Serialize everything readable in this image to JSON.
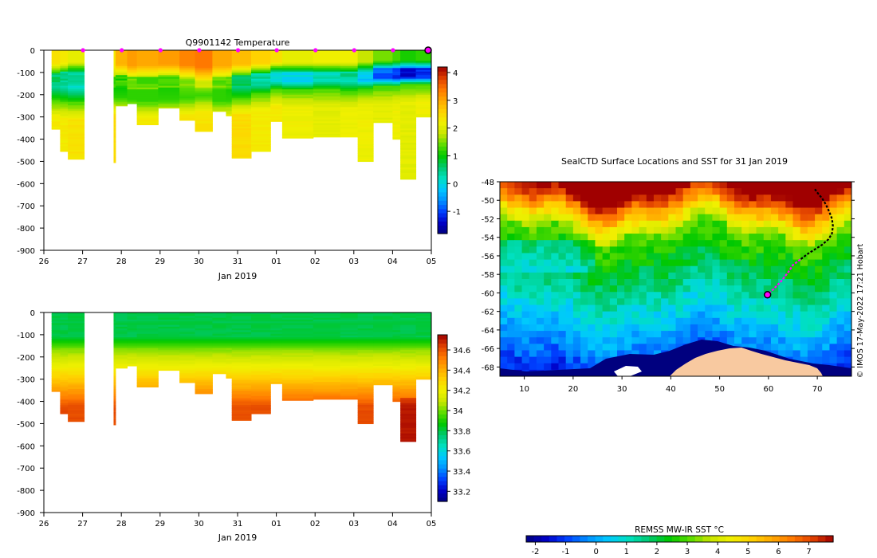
{
  "colors": {
    "jet": [
      "#00007f",
      "#0000c8",
      "#0040ff",
      "#0090ff",
      "#00c8ff",
      "#00e0c0",
      "#00c870",
      "#00c800",
      "#5adc00",
      "#c8e600",
      "#f0f000",
      "#ffd200",
      "#ffa800",
      "#ff7800",
      "#e04000",
      "#a00000"
    ],
    "land": "#f8c9a0",
    "track": "#000000",
    "marker": "#ff00ff"
  },
  "chart_data": [
    {
      "type": "heatmap",
      "name": "temperature-section",
      "title": "Q9901142  Temperature",
      "xlabel": "Jan 2019",
      "ylabel": "",
      "x_ticks": [
        "26",
        "27",
        "28",
        "29",
        "30",
        "31",
        "01",
        "02",
        "03",
        "04",
        "05"
      ],
      "y_ticks": [
        "0",
        "-100",
        "-200",
        "-300",
        "-400",
        "-500",
        "-600",
        "-700",
        "-800",
        "-900"
      ],
      "ylim": [
        -900,
        0
      ],
      "xlim": [
        26.0,
        36.0
      ],
      "colorbar_ticks": [
        "-1",
        "0",
        "1",
        "2",
        "3",
        "4"
      ],
      "clim": [
        -1.8,
        4.2
      ],
      "profile_dates": [
        27,
        28,
        29,
        30,
        31,
        32,
        33,
        34,
        35
      ],
      "profiles": [
        {
          "x": 26.2,
          "w": 0.22,
          "depth": 355,
          "surf": 2.4,
          "min": 0.4,
          "mintop": 100,
          "minbot": 220,
          "deep": 2.2
        },
        {
          "x": 26.42,
          "w": 0.2,
          "depth": 455,
          "surf": 2.3,
          "min": 0.3,
          "mintop": 95,
          "minbot": 225,
          "deep": 2.2
        },
        {
          "x": 26.62,
          "w": 0.42,
          "depth": 490,
          "surf": 2.1,
          "min": 0.1,
          "mintop": 90,
          "minbot": 230,
          "deep": 2.3
        },
        {
          "x": 27.8,
          "w": 0.05,
          "depth": 505,
          "surf": 2.3,
          "min": 1.0,
          "mintop": 120,
          "minbot": 210,
          "deep": 2.4
        },
        {
          "x": 27.85,
          "w": 0.3,
          "depth": 250,
          "surf": 2.9,
          "min": 1.0,
          "mintop": 110,
          "minbot": 215,
          "deep": 2.4
        },
        {
          "x": 28.15,
          "w": 0.25,
          "depth": 240,
          "surf": 3.1,
          "min": 1.2,
          "mintop": 120,
          "minbot": 220,
          "deep": 2.2
        },
        {
          "x": 28.4,
          "w": 0.55,
          "depth": 335,
          "surf": 3.0,
          "min": 1.2,
          "mintop": 115,
          "minbot": 225,
          "deep": 2.2
        },
        {
          "x": 28.95,
          "w": 0.55,
          "depth": 260,
          "surf": 3.1,
          "min": 1.1,
          "mintop": 110,
          "minbot": 220,
          "deep": 2.2
        },
        {
          "x": 29.5,
          "w": 0.4,
          "depth": 315,
          "surf": 3.3,
          "min": 1.4,
          "mintop": 115,
          "minbot": 215,
          "deep": 2.3
        },
        {
          "x": 29.9,
          "w": 0.45,
          "depth": 365,
          "surf": 3.4,
          "min": 1.6,
          "mintop": 130,
          "minbot": 200,
          "deep": 2.3
        },
        {
          "x": 30.35,
          "w": 0.35,
          "depth": 275,
          "surf": 3.0,
          "min": 1.2,
          "mintop": 120,
          "minbot": 225,
          "deep": 2.2
        },
        {
          "x": 30.7,
          "w": 0.15,
          "depth": 295,
          "surf": 3.0,
          "min": 1.1,
          "mintop": 120,
          "minbot": 225,
          "deep": 2.2
        },
        {
          "x": 30.85,
          "w": 0.5,
          "depth": 485,
          "surf": 2.8,
          "min": 0.5,
          "mintop": 110,
          "minbot": 210,
          "deep": 2.4
        },
        {
          "x": 31.35,
          "w": 0.5,
          "depth": 455,
          "surf": 2.6,
          "min": 0.2,
          "mintop": 100,
          "minbot": 190,
          "deep": 2.2
        },
        {
          "x": 31.85,
          "w": 0.3,
          "depth": 320,
          "surf": 2.4,
          "min": -0.1,
          "mintop": 90,
          "minbot": 170,
          "deep": 2.2
        },
        {
          "x": 32.15,
          "w": 0.8,
          "depth": 395,
          "surf": 2.1,
          "min": -0.2,
          "mintop": 95,
          "minbot": 175,
          "deep": 2.1
        },
        {
          "x": 32.95,
          "w": 0.7,
          "depth": 390,
          "surf": 2.2,
          "min": 0.1,
          "mintop": 90,
          "minbot": 170,
          "deep": 2.0
        },
        {
          "x": 33.65,
          "w": 0.45,
          "depth": 390,
          "surf": 2.2,
          "min": 0.2,
          "mintop": 90,
          "minbot": 180,
          "deep": 2.1
        },
        {
          "x": 34.1,
          "w": 0.4,
          "depth": 500,
          "surf": 1.8,
          "min": -0.4,
          "mintop": 90,
          "minbot": 170,
          "deep": 2.1
        },
        {
          "x": 34.5,
          "w": 0.5,
          "depth": 325,
          "surf": 1.5,
          "min": -1.0,
          "mintop": 80,
          "minbot": 160,
          "deep": 2.0
        },
        {
          "x": 35.0,
          "w": 0.2,
          "depth": 400,
          "surf": 1.3,
          "min": -1.2,
          "mintop": 80,
          "minbot": 160,
          "deep": 2.1
        },
        {
          "x": 35.2,
          "w": 0.4,
          "depth": 580,
          "surf": 1.1,
          "min": -1.5,
          "mintop": 80,
          "minbot": 150,
          "deep": 2.0
        },
        {
          "x": 35.6,
          "w": 0.4,
          "depth": 300,
          "surf": 1.2,
          "min": -1.4,
          "mintop": 80,
          "minbot": 150,
          "deep": 2.1
        }
      ]
    },
    {
      "type": "heatmap",
      "name": "salinity-section",
      "title": "",
      "xlabel": "Jan 2019",
      "x_ticks": [
        "26",
        "27",
        "28",
        "29",
        "30",
        "31",
        "01",
        "02",
        "03",
        "04",
        "05"
      ],
      "y_ticks": [
        "0",
        "-100",
        "-200",
        "-300",
        "-400",
        "-500",
        "-600",
        "-700",
        "-800",
        "-900"
      ],
      "ylim": [
        -900,
        0
      ],
      "xlim": [
        26.0,
        36.0
      ],
      "colorbar_ticks": [
        "33.2",
        "33.4",
        "33.6",
        "33.8",
        "34",
        "34.2",
        "34.4",
        "34.6"
      ],
      "clim": [
        33.1,
        34.75
      ]
    },
    {
      "type": "heatmap",
      "name": "sst-map",
      "title": "SealCTD Surface Locations and SST for 31 Jan 2019",
      "x_ticks": [
        "10",
        "20",
        "30",
        "40",
        "50",
        "60",
        "70"
      ],
      "y_ticks": [
        "-48",
        "-50",
        "-52",
        "-54",
        "-56",
        "-58",
        "-60",
        "-62",
        "-64",
        "-66",
        "-68"
      ],
      "xlim": [
        5,
        77
      ],
      "ylim": [
        -69,
        -48
      ],
      "colorbar_label": "REMSS MW-IR SST °C",
      "colorbar_ticks": [
        "-2",
        "-1",
        "0",
        "1",
        "2",
        "3",
        "4",
        "5",
        "6",
        "7"
      ],
      "clim": [
        -2.3,
        7.8
      ],
      "track_lon": [
        69.5,
        70.2,
        71,
        71.8,
        72.5,
        73,
        73.2,
        73,
        72.3,
        71,
        69.5,
        68,
        66.5,
        65,
        64,
        62.5,
        61,
        59.8
      ],
      "track_lat": [
        -48.8,
        -49.3,
        -49.8,
        -50.5,
        -51.3,
        -52,
        -52.8,
        -53.6,
        -54.2,
        -54.8,
        -55.3,
        -55.8,
        -56.4,
        -57,
        -57.8,
        -58.8,
        -59.6,
        -60.2
      ],
      "seal_position": [
        59.8,
        -60.2
      ]
    }
  ],
  "watermark": "© IMOS 17-May-2022 17:21 Hobart"
}
